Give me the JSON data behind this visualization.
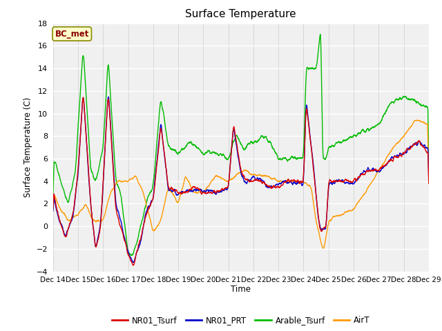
{
  "title": "Surface Temperature",
  "ylabel": "Surface Temperature (C)",
  "xlabel": "Time",
  "annotation": "BC_met",
  "ylim": [
    -4,
    18
  ],
  "yticks": [
    -4,
    -2,
    0,
    2,
    4,
    6,
    8,
    10,
    12,
    14,
    16,
    18
  ],
  "xtick_labels": [
    "Dec 14",
    "Dec 15",
    "Dec 16",
    "Dec 17",
    "Dec 18",
    "Dec 19",
    "Dec 20",
    "Dec 21",
    "Dec 22",
    "Dec 23",
    "Dec 24",
    "Dec 25",
    "Dec 26",
    "Dec 27",
    "Dec 28",
    "Dec 29"
  ],
  "legend_entries": [
    "NR01_Tsurf",
    "NR01_PRT",
    "Arable_Tsurf",
    "AirT"
  ],
  "colors": {
    "NR01_Tsurf": "#dd0000",
    "NR01_PRT": "#0000cc",
    "Arable_Tsurf": "#00bb00",
    "AirT": "#ff9900"
  },
  "bg_color": "#e8e8e8",
  "plot_bg": "#f0f0f0",
  "annotation_bg": "#ffffcc",
  "annotation_fg": "#880000",
  "annotation_border": "#888800",
  "grid_color": "#ffffff",
  "spine_color": "#aaaaaa"
}
